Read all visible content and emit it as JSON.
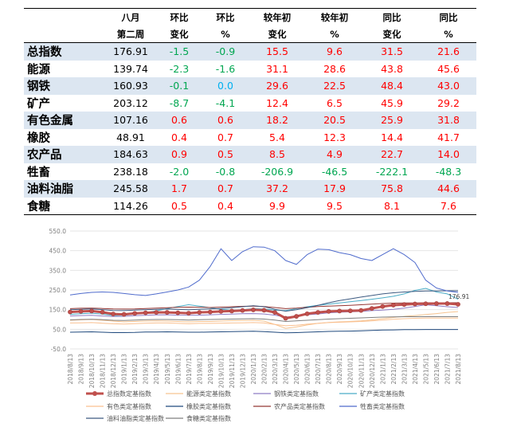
{
  "table": {
    "headers": [
      [
        "",
        "八月",
        "环比",
        "环比",
        "较年初",
        "较年初",
        "同比",
        "同比"
      ],
      [
        "",
        "第二周",
        "变化",
        "%",
        "变化",
        "%",
        "变化",
        "%"
      ]
    ],
    "rows": [
      {
        "name": "总指数",
        "cells": [
          "176.91",
          "-1.5",
          "-0.9",
          "15.5",
          "9.6",
          "31.5",
          "21.6"
        ]
      },
      {
        "name": "能源",
        "cells": [
          "139.74",
          "-2.3",
          "-1.6",
          "31.1",
          "28.6",
          "43.8",
          "45.6"
        ]
      },
      {
        "name": "钢铁",
        "cells": [
          "160.93",
          "-0.1",
          "0.0",
          "29.6",
          "22.5",
          "48.4",
          "43.0"
        ]
      },
      {
        "name": "矿产",
        "cells": [
          "203.12",
          "-8.7",
          "-4.1",
          "12.4",
          "6.5",
          "45.9",
          "29.2"
        ]
      },
      {
        "name": "有色金属",
        "cells": [
          "107.16",
          "0.6",
          "0.6",
          "18.2",
          "20.5",
          "25.9",
          "31.8"
        ]
      },
      {
        "name": "橡胶",
        "cells": [
          "48.91",
          "0.4",
          "0.7",
          "5.4",
          "12.3",
          "14.4",
          "41.7"
        ]
      },
      {
        "name": "农产品",
        "cells": [
          "184.63",
          "0.9",
          "0.5",
          "8.5",
          "4.9",
          "22.7",
          "14.0"
        ]
      },
      {
        "name": "牲畜",
        "cells": [
          "238.18",
          "-2.0",
          "-0.8",
          "-206.9",
          "-46.5",
          "-222.1",
          "-48.3"
        ]
      },
      {
        "name": "油料油脂",
        "cells": [
          "245.58",
          "1.7",
          "0.7",
          "37.2",
          "17.9",
          "75.8",
          "44.6"
        ]
      },
      {
        "name": "食糖",
        "cells": [
          "114.26",
          "0.5",
          "0.4",
          "9.9",
          "9.5",
          "8.1",
          "7.6"
        ]
      }
    ]
  },
  "chart_data": {
    "type": "line",
    "ylim": [
      -50,
      550
    ],
    "yticks": [
      "550.0",
      "450.0",
      "350.0",
      "250.0",
      "150.0",
      "50.0",
      "-50.0"
    ],
    "x": [
      "2018/8/13",
      "2018/9/13",
      "2018/10/13",
      "2018/11/13",
      "2018/12/13",
      "2019/1/13",
      "2019/2/13",
      "2019/3/13",
      "2019/4/13",
      "2019/5/13",
      "2019/6/13",
      "2019/7/13",
      "2019/8/13",
      "2019/9/13",
      "2019/10/13",
      "2019/11/13",
      "2019/12/13",
      "2020/1/13",
      "2020/2/13",
      "2020/3/13",
      "2020/4/13",
      "2020/5/13",
      "2020/6/13",
      "2020/7/13",
      "2020/8/13",
      "2020/9/13",
      "2020/10/13",
      "2020/11/13",
      "2020/12/13",
      "2021/1/13",
      "2021/2/13",
      "2021/3/13",
      "2021/4/13",
      "2021/5/13",
      "2021/6/13",
      "2021/7/13",
      "2021/8/13"
    ],
    "end_label": "176.91",
    "series": [
      {
        "name": "总指数定基指数",
        "color": "#c0504d",
        "values": [
          138,
          141,
          143,
          137,
          128,
          126,
          131,
          134,
          136,
          136,
          134,
          132,
          136,
          138,
          141,
          143,
          146,
          149,
          147,
          136,
          106,
          116,
          129,
          136,
          141,
          143,
          144,
          146,
          156,
          166,
          173,
          176,
          179,
          180,
          181,
          181,
          177
        ]
      },
      {
        "name": "能源类定基指数",
        "color": "#f6c390",
        "values": [
          96,
          98,
          100,
          96,
          92,
          88,
          90,
          92,
          93,
          92,
          90,
          88,
          90,
          90,
          92,
          94,
          95,
          96,
          92,
          75,
          55,
          62,
          72,
          80,
          85,
          88,
          90,
          93,
          98,
          104,
          110,
          116,
          120,
          125,
          130,
          136,
          140
        ]
      },
      {
        "name": "钢铁类定基指数",
        "color": "#8e7cc3",
        "values": [
          118,
          120,
          121,
          118,
          115,
          116,
          119,
          121,
          123,
          124,
          122,
          121,
          122,
          124,
          126,
          127,
          129,
          130,
          128,
          122,
          112,
          118,
          124,
          128,
          134,
          137,
          139,
          141,
          145,
          148,
          152,
          158,
          166,
          175,
          170,
          165,
          161
        ]
      },
      {
        "name": "矿产类定基指数",
        "color": "#4bacc6",
        "values": [
          126,
          129,
          132,
          127,
          120,
          121,
          127,
          135,
          144,
          155,
          166,
          175,
          168,
          160,
          152,
          148,
          150,
          155,
          153,
          148,
          145,
          155,
          165,
          172,
          178,
          184,
          190,
          196,
          203,
          210,
          218,
          230,
          248,
          258,
          240,
          230,
          203
        ]
      },
      {
        "name": "有色类定基指数",
        "color": "#fac090",
        "values": [
          82,
          83,
          84,
          81,
          78,
          77,
          79,
          81,
          82,
          82,
          80,
          78,
          80,
          80,
          81,
          82,
          83,
          84,
          82,
          75,
          68,
          71,
          76,
          80,
          84,
          86,
          88,
          90,
          93,
          97,
          101,
          104,
          106,
          107,
          107,
          107,
          107
        ]
      },
      {
        "name": "橡胶类定基指数",
        "color": "#1f497d",
        "values": [
          35,
          36,
          37,
          35,
          33,
          33,
          34,
          36,
          36,
          37,
          36,
          35,
          35,
          36,
          37,
          38,
          39,
          40,
          38,
          35,
          32,
          33,
          35,
          37,
          39,
          40,
          41,
          42,
          44,
          46,
          47,
          48,
          48,
          49,
          49,
          49,
          49
        ]
      },
      {
        "name": "农产品类定基指数",
        "color": "#953734",
        "values": [
          155,
          157,
          158,
          156,
          154,
          153,
          154,
          156,
          158,
          160,
          162,
          163,
          162,
          161,
          163,
          165,
          167,
          168,
          166,
          161,
          155,
          158,
          162,
          166,
          168,
          170,
          172,
          175,
          178,
          181,
          183,
          184,
          184,
          185,
          185,
          185,
          185
        ]
      },
      {
        "name": "牲畜类定基指数",
        "color": "#4f6bcc",
        "values": [
          225,
          232,
          238,
          240,
          238,
          232,
          226,
          222,
          230,
          240,
          250,
          265,
          300,
          370,
          460,
          400,
          445,
          470,
          468,
          450,
          400,
          380,
          430,
          458,
          455,
          440,
          430,
          410,
          400,
          430,
          460,
          430,
          390,
          300,
          260,
          245,
          238
        ]
      },
      {
        "name": "油料油脂类定基指数",
        "color": "#3d5a80",
        "values": [
          150,
          152,
          154,
          150,
          146,
          145,
          148,
          150,
          152,
          153,
          151,
          150,
          152,
          154,
          156,
          160,
          165,
          170,
          165,
          152,
          142,
          150,
          160,
          172,
          185,
          196,
          205,
          214,
          222,
          230,
          236,
          240,
          243,
          245,
          245,
          246,
          246
        ]
      },
      {
        "name": "食糖类定基指数",
        "color": "#7f7f7f",
        "values": [
          98,
          100,
          101,
          99,
          96,
          95,
          97,
          99,
          100,
          100,
          99,
          97,
          99,
          100,
          101,
          102,
          103,
          104,
          102,
          97,
          90,
          93,
          96,
          99,
          102,
          104,
          106,
          108,
          110,
          112,
          113,
          114,
          114,
          114,
          114,
          114,
          114
        ]
      }
    ]
  }
}
